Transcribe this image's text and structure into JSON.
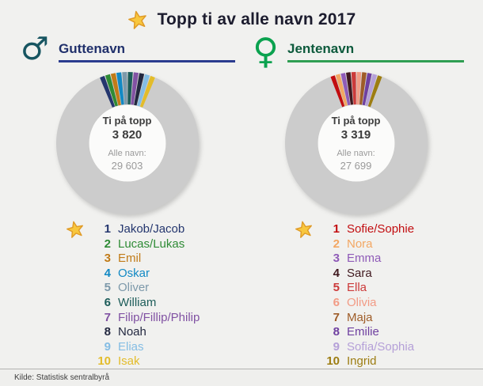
{
  "page": {
    "title": "Topp ti av alle navn 2017",
    "source": "Kilde: Statistisk sentralbyrå"
  },
  "chart_data": [
    {
      "type": "donut",
      "group": "Guttenavn",
      "gender_symbol": "♂",
      "symbol_color": "#175561",
      "accent_text": "#20306b",
      "accent_line": "#2b3c8f",
      "center_label": "Ti på topp",
      "center_value": "3 820",
      "top_ten_total": 3820,
      "all_label": "Alle navn:",
      "all_value": "29 603",
      "all_names_total": 29603,
      "rest_color": "#cccccc",
      "hole_color": "#fbfbfa",
      "slices": [
        {
          "rank": "1",
          "name": "Jakob/Jacob",
          "color": "#24366e"
        },
        {
          "rank": "2",
          "name": "Lucas/Lukas",
          "color": "#2e8b35"
        },
        {
          "rank": "3",
          "name": "Emil",
          "color": "#c17b18"
        },
        {
          "rank": "4",
          "name": "Oskar",
          "color": "#1289c4"
        },
        {
          "rank": "5",
          "name": "Oliver",
          "color": "#7d99aa"
        },
        {
          "rank": "6",
          "name": "William",
          "color": "#1c5c59"
        },
        {
          "rank": "7",
          "name": "Filip/Fillip/Philip",
          "color": "#8152a3"
        },
        {
          "rank": "8",
          "name": "Noah",
          "color": "#232840"
        },
        {
          "rank": "9",
          "name": "Elias",
          "color": "#84bde4"
        },
        {
          "rank": "10",
          "name": "Isak",
          "color": "#e3bc2a"
        }
      ]
    },
    {
      "type": "donut",
      "group": "Jentenavn",
      "gender_symbol": "♀",
      "symbol_color": "#0ba24f",
      "accent_text": "#0d5a3c",
      "accent_line": "#2f9e52",
      "center_label": "Ti på topp",
      "center_value": "3 319",
      "top_ten_total": 3319,
      "all_label": "Alle navn:",
      "all_value": "27 699",
      "all_names_total": 27699,
      "rest_color": "#cccccc",
      "hole_color": "#fbfbfa",
      "slices": [
        {
          "rank": "1",
          "name": "Sofie/Sophie",
          "color": "#c20d10"
        },
        {
          "rank": "2",
          "name": "Nora",
          "color": "#f3a763"
        },
        {
          "rank": "3",
          "name": "Emma",
          "color": "#8f5bb8"
        },
        {
          "rank": "4",
          "name": "Sara",
          "color": "#40191f"
        },
        {
          "rank": "5",
          "name": "Ella",
          "color": "#cc3a3a"
        },
        {
          "rank": "6",
          "name": "Olivia",
          "color": "#f29b85"
        },
        {
          "rank": "7",
          "name": "Maja",
          "color": "#9e5c28"
        },
        {
          "rank": "8",
          "name": "Emilie",
          "color": "#6f40a0"
        },
        {
          "rank": "9",
          "name": "Sofia/Sophia",
          "color": "#b5a0d8"
        },
        {
          "rank": "10",
          "name": "Ingrid",
          "color": "#9d7d12"
        }
      ]
    }
  ]
}
